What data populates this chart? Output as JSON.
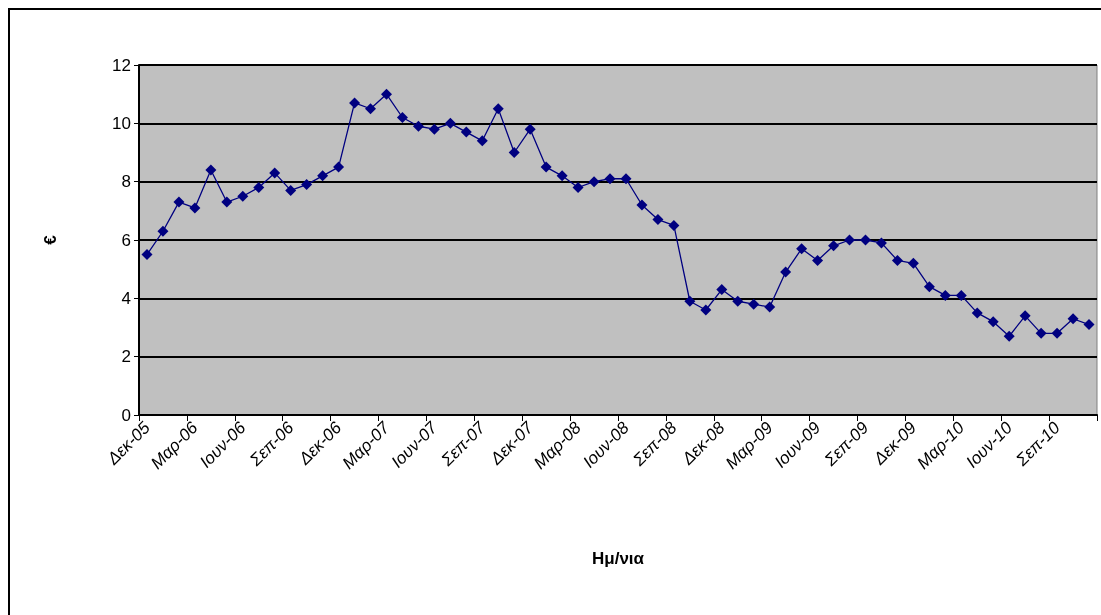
{
  "chart_data": {
    "type": "line",
    "xlabel": "Ημ/νια",
    "ylabel": "€",
    "categories": [
      "Δεκ-05",
      null,
      null,
      "Μαρ-06",
      null,
      null,
      "Ιουν-06",
      null,
      null,
      "Σεπ-06",
      null,
      null,
      "Δεκ-06",
      null,
      null,
      "Μαρ-07",
      null,
      null,
      "Ιουν-07",
      null,
      null,
      "Σεπ-07",
      null,
      null,
      "Δεκ-07",
      null,
      null,
      "Μαρ-08",
      null,
      null,
      "Ιουν-08",
      null,
      null,
      "Σεπ-08",
      null,
      null,
      "Δεκ-08",
      null,
      null,
      "Μαρ-09",
      null,
      null,
      "Ιουν-09",
      null,
      null,
      "Σεπ-09",
      null,
      null,
      "Δεκ-09",
      null,
      null,
      "Μαρ-10",
      null,
      null,
      "Ιουν-10",
      null,
      null,
      "Σεπ-10",
      null,
      null
    ],
    "series": [
      {
        "color": "#000080",
        "values": [
          5.5,
          6.3,
          7.3,
          7.1,
          8.4,
          7.3,
          7.5,
          7.8,
          8.3,
          7.7,
          7.9,
          8.2,
          8.5,
          10.7,
          10.5,
          11.0,
          10.2,
          9.9,
          9.8,
          10.0,
          9.7,
          9.4,
          10.5,
          9.0,
          9.8,
          8.5,
          8.2,
          7.8,
          8.0,
          8.1,
          8.1,
          7.2,
          6.7,
          6.5,
          3.9,
          3.6,
          4.3,
          3.9,
          3.8,
          3.7,
          4.9,
          5.7,
          5.3,
          5.8,
          6.0,
          6.0,
          5.9,
          5.3,
          5.2,
          4.4,
          4.1,
          4.1,
          3.5,
          3.2,
          2.7,
          3.4,
          2.8,
          2.8,
          3.3,
          3.1
        ]
      }
    ],
    "ylim": [
      0,
      12
    ],
    "yticks": [
      0,
      2,
      4,
      6,
      8,
      10,
      12
    ],
    "grid": "y",
    "marker": "diamond",
    "line_style": "solid"
  }
}
